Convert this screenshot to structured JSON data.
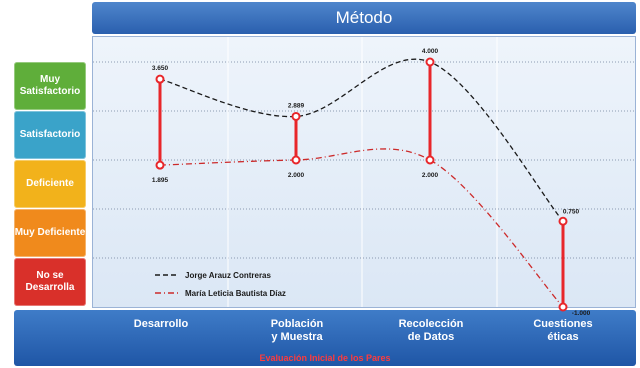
{
  "chart_data": {
    "type": "line",
    "title": "Método",
    "xlabel": "Evaluación Inicial de los Pares",
    "categories": [
      "Desarrollo",
      "Población\ny Muestra",
      "Recolección\nde Datos",
      "Cuestiones\néticas"
    ],
    "y_levels": [
      {
        "label": "Muy Satisfactorio",
        "value": 4,
        "color": "#5fae3a"
      },
      {
        "label": "Satisfactorio",
        "value": 3,
        "color": "#3aa3c9"
      },
      {
        "label": "Deficiente",
        "value": 2,
        "color": "#f2b21b"
      },
      {
        "label": "Muy Deficiente",
        "value": 1,
        "color": "#f08a1c"
      },
      {
        "label": "No se Desarrolla",
        "value": 0,
        "color": "#d9302a"
      }
    ],
    "ylim": [
      -1,
      5
    ],
    "series": [
      {
        "name": "Jorge Arauz Contreras",
        "values": [
          3.65,
          2.889,
          4.0,
          0.75
        ],
        "labels": [
          "3.650",
          "2.889",
          "4.000",
          "0.750"
        ],
        "color": "#1a1a1a",
        "dash": "dashed"
      },
      {
        "name": "María Leticia Bautista Díaz",
        "values": [
          1.895,
          2.0,
          2.0,
          -1.0
        ],
        "labels": [
          "1.895",
          "2.000",
          "2.000",
          "-1.000"
        ],
        "color": "#cc2a2a",
        "dash": "dashdot"
      }
    ],
    "connector_color": "#e8262a",
    "grid": true,
    "legend_position": "bottom-left"
  }
}
